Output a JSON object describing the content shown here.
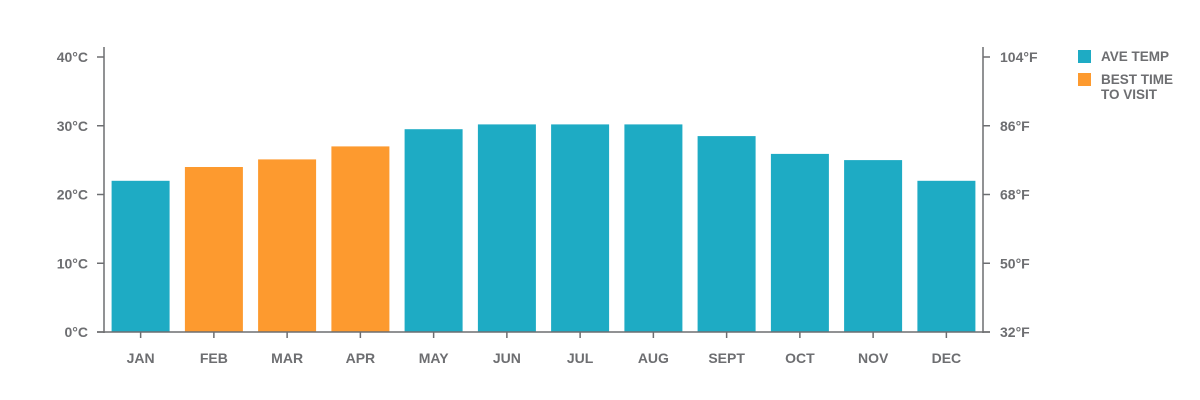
{
  "chart_data": {
    "type": "bar",
    "categories": [
      "JAN",
      "FEB",
      "MAR",
      "APR",
      "MAY",
      "JUN",
      "JUL",
      "AUG",
      "SEPT",
      "OCT",
      "NOV",
      "DEC"
    ],
    "values": [
      22,
      24,
      25.1,
      27,
      29.5,
      30.2,
      30.2,
      30.2,
      28.5,
      25.9,
      25,
      22
    ],
    "highlight": [
      false,
      true,
      true,
      true,
      false,
      false,
      false,
      false,
      false,
      false,
      false,
      false
    ],
    "ylim": [
      0,
      40
    ],
    "y_ticks_left": [
      "0°C",
      "10°C",
      "20°C",
      "30°C",
      "40°C"
    ],
    "y_ticks_right": [
      "32°F",
      "50°F",
      "68°F",
      "86°F",
      "104°F"
    ],
    "colors": {
      "ave": "#1eabc4",
      "best": "#fd9a2f",
      "axis": "#6d6e71"
    },
    "grid": false,
    "legend_position": "right"
  },
  "legend": {
    "ave_label": "AVE TEMP",
    "best_label": "BEST TIME\nTO VISIT"
  }
}
